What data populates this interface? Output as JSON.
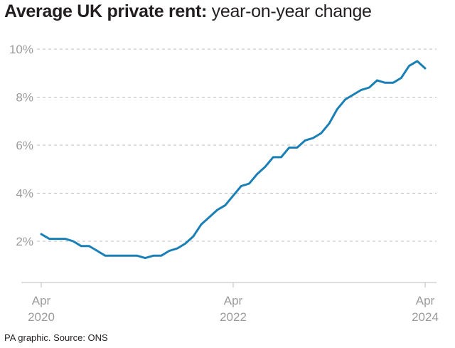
{
  "title_bold": "Average UK private rent:",
  "title_rest": " year-on-year change",
  "source": "PA graphic. Source: ONS",
  "chart_data": {
    "type": "line",
    "title": "Average UK private rent: year-on-year change",
    "xlabel": "",
    "ylabel": "",
    "ylim": [
      1.0,
      10.0
    ],
    "y_ticks": [
      {
        "value": 10,
        "label": "10%"
      },
      {
        "value": 8,
        "label": "8%"
      },
      {
        "value": 6,
        "label": "6%"
      },
      {
        "value": 4,
        "label": "4%"
      },
      {
        "value": 2,
        "label": "2%"
      }
    ],
    "x_ticks": [
      {
        "index": 0,
        "month": "Apr",
        "year": "2020"
      },
      {
        "index": 24,
        "month": "Apr",
        "year": "2022"
      },
      {
        "index": 48,
        "month": "Apr",
        "year": "2024"
      }
    ],
    "grid": "horizontal dashed",
    "line_color": "#1a7fb5",
    "x": [
      "2020-04",
      "2020-05",
      "2020-06",
      "2020-07",
      "2020-08",
      "2020-09",
      "2020-10",
      "2020-11",
      "2020-12",
      "2021-01",
      "2021-02",
      "2021-03",
      "2021-04",
      "2021-05",
      "2021-06",
      "2021-07",
      "2021-08",
      "2021-09",
      "2021-10",
      "2021-11",
      "2021-12",
      "2022-01",
      "2022-02",
      "2022-03",
      "2022-04",
      "2022-05",
      "2022-06",
      "2022-07",
      "2022-08",
      "2022-09",
      "2022-10",
      "2022-11",
      "2022-12",
      "2023-01",
      "2023-02",
      "2023-03",
      "2023-04",
      "2023-05",
      "2023-06",
      "2023-07",
      "2023-08",
      "2023-09",
      "2023-10",
      "2023-11",
      "2023-12",
      "2024-01",
      "2024-02",
      "2024-03",
      "2024-04"
    ],
    "values": [
      2.3,
      2.1,
      2.1,
      2.1,
      2.0,
      1.8,
      1.8,
      1.6,
      1.4,
      1.4,
      1.4,
      1.4,
      1.4,
      1.3,
      1.4,
      1.4,
      1.6,
      1.7,
      1.9,
      2.2,
      2.7,
      3.0,
      3.3,
      3.5,
      3.9,
      4.3,
      4.4,
      4.8,
      5.1,
      5.5,
      5.5,
      5.9,
      5.9,
      6.2,
      6.3,
      6.5,
      6.9,
      7.5,
      7.9,
      8.1,
      8.3,
      8.4,
      8.7,
      8.6,
      8.6,
      8.8,
      9.3,
      9.5,
      9.2
    ]
  }
}
